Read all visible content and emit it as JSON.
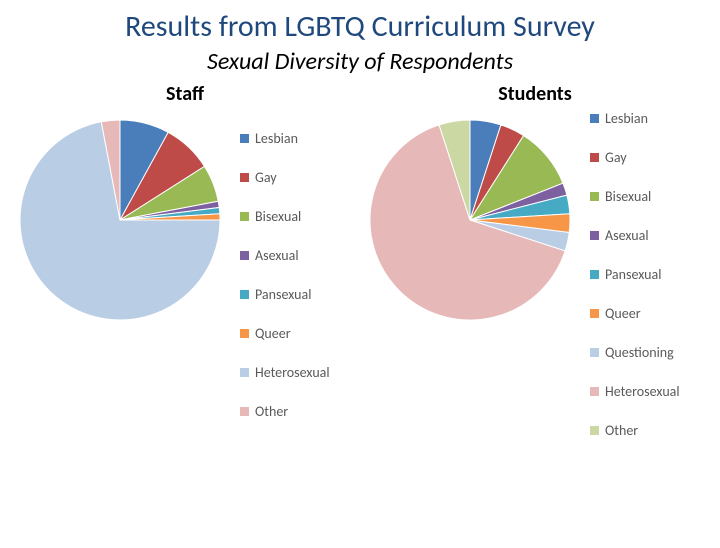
{
  "title": "Results from LGBTQ Curriculum Survey",
  "subtitle": "Sexual Diversity of Respondents",
  "title_color": "#1f497d",
  "title_fontsize": 30,
  "subtitle_fontsize": 24,
  "background_color": "#ffffff",
  "staff_chart": {
    "title": "Staff",
    "type": "pie",
    "radius": 100,
    "start_angle": -90,
    "slices": [
      {
        "label": "Lesbian",
        "value": 8,
        "color": "#4a7ebb"
      },
      {
        "label": "Gay",
        "value": 8,
        "color": "#be4b48"
      },
      {
        "label": "Bisexual",
        "value": 6,
        "color": "#98b954"
      },
      {
        "label": "Asexual",
        "value": 1,
        "color": "#7d60a0"
      },
      {
        "label": "Pansexual",
        "value": 1,
        "color": "#46aac5"
      },
      {
        "label": "Queer",
        "value": 1,
        "color": "#f79646"
      },
      {
        "label": "Heterosexual",
        "value": 72,
        "color": "#b9cde5"
      },
      {
        "label": "Other",
        "value": 3,
        "color": "#e6b9b8"
      }
    ],
    "stroke_color": "#ffffff",
    "stroke_width": 1,
    "legend_fontsize": 14,
    "legend_text_color": "#595959"
  },
  "students_chart": {
    "title": "Students",
    "type": "pie",
    "radius": 100,
    "start_angle": -90,
    "slices": [
      {
        "label": "Lesbian",
        "value": 5,
        "color": "#4a7ebb"
      },
      {
        "label": "Gay",
        "value": 4,
        "color": "#be4b48"
      },
      {
        "label": "Bisexual",
        "value": 10,
        "color": "#98b954"
      },
      {
        "label": "Asexual",
        "value": 2,
        "color": "#7d60a0"
      },
      {
        "label": "Pansexual",
        "value": 3,
        "color": "#46aac5"
      },
      {
        "label": "Queer",
        "value": 3,
        "color": "#f79646"
      },
      {
        "label": "Questioning",
        "value": 3,
        "color": "#b9cde5"
      },
      {
        "label": "Heterosexual",
        "value": 65,
        "color": "#e6b9b8"
      },
      {
        "label": "Other",
        "value": 5,
        "color": "#ccd8a4"
      }
    ],
    "stroke_color": "#ffffff",
    "stroke_width": 1,
    "legend_fontsize": 14,
    "legend_text_color": "#595959"
  }
}
